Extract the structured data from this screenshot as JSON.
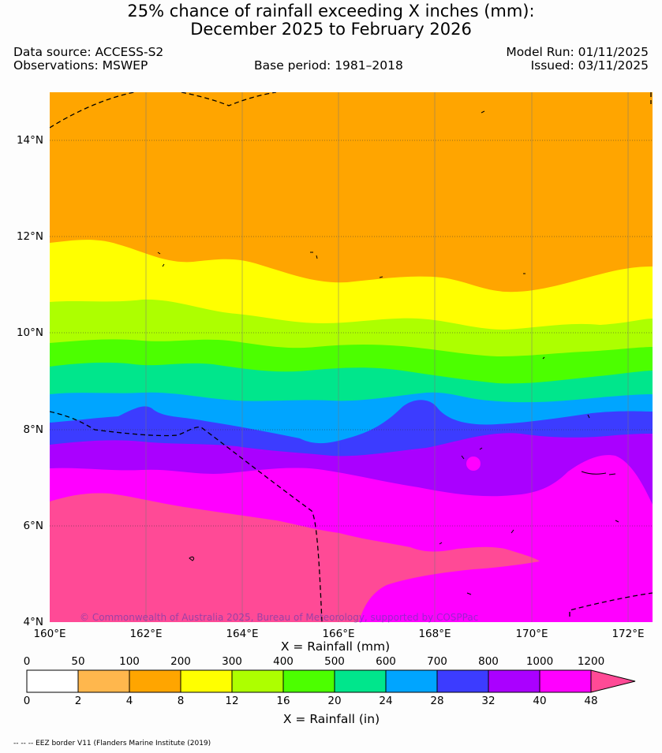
{
  "header": {
    "title_line1": "25% chance of rainfall exceeding X inches (mm):",
    "title_line2": "December 2025 to February 2026",
    "data_source": "Data source: ACCESS-S2",
    "observations": "Observations: MSWEP",
    "base_period": "Base period: 1981–2018",
    "model_run": "Model Run: 01/11/2025",
    "issued": "Issued: 03/11/2025"
  },
  "map": {
    "lat_labels": [
      "14°N",
      "12°N",
      "10°N",
      "8°N",
      "6°N",
      "4°N"
    ],
    "lon_labels": [
      "160°E",
      "162°E",
      "164°E",
      "166°E",
      "168°E",
      "170°E",
      "172°E"
    ],
    "copyright": "© Commonwealth of Australia 2025, Bureau of Meteorology, supported by COSPPac"
  },
  "colorbar": {
    "mm_label": "X = Rainfall (mm)",
    "in_label": "X = Rainfall (in)",
    "mm_ticks": [
      "0",
      "50",
      "100",
      "200",
      "300",
      "400",
      "500",
      "600",
      "700",
      "800",
      "1000",
      "1200"
    ],
    "in_ticks": [
      "0",
      "2",
      "4",
      "8",
      "12",
      "16",
      "20",
      "24",
      "28",
      "32",
      "40",
      "48"
    ],
    "colors": [
      "#ffffff",
      "#ffb74d",
      "#ffa500",
      "#ffff00",
      "#adff00",
      "#4cff00",
      "#00e68c",
      "#00a5ff",
      "#3c3cff",
      "#aa00ff",
      "#ff00ff",
      "#ff4a96"
    ]
  },
  "footer": {
    "eez_note": "-- -- -- EEZ border V11 (Flanders Marine Institute (2019)"
  }
}
